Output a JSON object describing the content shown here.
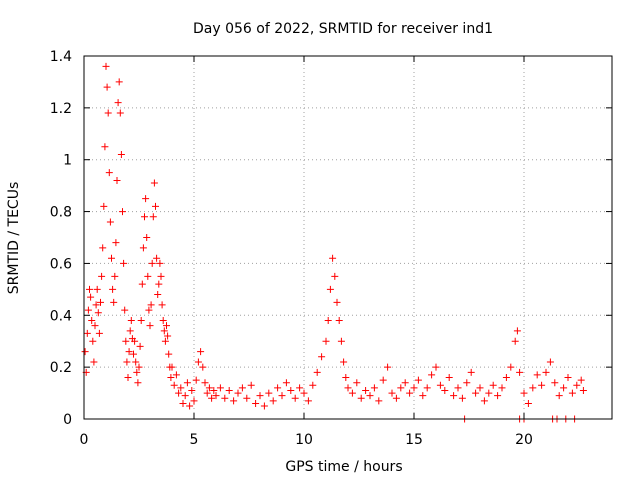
{
  "chart_data": {
    "type": "scatter",
    "title": "Day 056 of 2022, SRMTID for receiver ind1",
    "xlabel": "GPS time / hours",
    "ylabel": "SRMTID / TECUs",
    "xlim": [
      0,
      24
    ],
    "ylim": [
      0,
      1.4
    ],
    "xticks": [
      0,
      5,
      10,
      15,
      20
    ],
    "xtick_labels": [
      "0",
      "5",
      "10",
      "15",
      "20"
    ],
    "yticks": [
      0,
      0.2,
      0.4,
      0.6,
      0.8,
      1.0,
      1.2,
      1.4
    ],
    "ytick_labels": [
      "0",
      "0.2",
      "0.4",
      "0.6",
      "0.8",
      "1",
      "1.2",
      "1.4"
    ],
    "grid": true,
    "marker": "+",
    "color": "#ff0000",
    "series": [
      {
        "name": "ind1",
        "points": [
          [
            0.05,
            0.26
          ],
          [
            0.1,
            0.18
          ],
          [
            0.15,
            0.33
          ],
          [
            0.2,
            0.42
          ],
          [
            0.25,
            0.5
          ],
          [
            0.3,
            0.47
          ],
          [
            0.35,
            0.38
          ],
          [
            0.4,
            0.3
          ],
          [
            0.45,
            0.22
          ],
          [
            0.5,
            0.36
          ],
          [
            0.55,
            0.44
          ],
          [
            0.6,
            0.5
          ],
          [
            0.65,
            0.41
          ],
          [
            0.7,
            0.33
          ],
          [
            0.75,
            0.45
          ],
          [
            0.8,
            0.55
          ],
          [
            0.85,
            0.66
          ],
          [
            0.9,
            0.82
          ],
          [
            0.95,
            1.05
          ],
          [
            1.0,
            1.36
          ],
          [
            1.05,
            1.28
          ],
          [
            1.1,
            1.18
          ],
          [
            1.15,
            0.95
          ],
          [
            1.2,
            0.76
          ],
          [
            1.25,
            0.62
          ],
          [
            1.3,
            0.5
          ],
          [
            1.35,
            0.45
          ],
          [
            1.4,
            0.55
          ],
          [
            1.45,
            0.68
          ],
          [
            1.5,
            0.92
          ],
          [
            1.55,
            1.22
          ],
          [
            1.6,
            1.3
          ],
          [
            1.65,
            1.18
          ],
          [
            1.7,
            1.02
          ],
          [
            1.75,
            0.8
          ],
          [
            1.8,
            0.6
          ],
          [
            1.85,
            0.42
          ],
          [
            1.9,
            0.3
          ],
          [
            1.95,
            0.22
          ],
          [
            2.0,
            0.16
          ],
          [
            2.05,
            0.26
          ],
          [
            2.1,
            0.34
          ],
          [
            2.15,
            0.38
          ],
          [
            2.2,
            0.31
          ],
          [
            2.25,
            0.25
          ],
          [
            2.3,
            0.3
          ],
          [
            2.35,
            0.22
          ],
          [
            2.4,
            0.18
          ],
          [
            2.45,
            0.14
          ],
          [
            2.5,
            0.2
          ],
          [
            2.55,
            0.28
          ],
          [
            2.6,
            0.38
          ],
          [
            2.65,
            0.52
          ],
          [
            2.7,
            0.66
          ],
          [
            2.75,
            0.78
          ],
          [
            2.8,
            0.85
          ],
          [
            2.85,
            0.7
          ],
          [
            2.9,
            0.55
          ],
          [
            2.95,
            0.42
          ],
          [
            3.0,
            0.36
          ],
          [
            3.05,
            0.44
          ],
          [
            3.1,
            0.6
          ],
          [
            3.15,
            0.78
          ],
          [
            3.2,
            0.91
          ],
          [
            3.25,
            0.82
          ],
          [
            3.3,
            0.62
          ],
          [
            3.35,
            0.48
          ],
          [
            3.4,
            0.52
          ],
          [
            3.45,
            0.6
          ],
          [
            3.5,
            0.55
          ],
          [
            3.55,
            0.44
          ],
          [
            3.6,
            0.38
          ],
          [
            3.65,
            0.34
          ],
          [
            3.7,
            0.3
          ],
          [
            3.75,
            0.36
          ],
          [
            3.8,
            0.32
          ],
          [
            3.85,
            0.25
          ],
          [
            3.9,
            0.2
          ],
          [
            3.95,
            0.16
          ],
          [
            4.0,
            0.2
          ],
          [
            4.1,
            0.13
          ],
          [
            4.2,
            0.17
          ],
          [
            4.3,
            0.1
          ],
          [
            4.4,
            0.12
          ],
          [
            4.5,
            0.06
          ],
          [
            4.6,
            0.09
          ],
          [
            4.7,
            0.14
          ],
          [
            4.8,
            0.05
          ],
          [
            4.9,
            0.11
          ],
          [
            5.0,
            0.07
          ],
          [
            5.1,
            0.15
          ],
          [
            5.2,
            0.22
          ],
          [
            5.3,
            0.26
          ],
          [
            5.4,
            0.2
          ],
          [
            5.5,
            0.14
          ],
          [
            5.6,
            0.1
          ],
          [
            5.7,
            0.12
          ],
          [
            5.8,
            0.08
          ],
          [
            5.9,
            0.11
          ],
          [
            6.0,
            0.09
          ],
          [
            6.2,
            0.12
          ],
          [
            6.4,
            0.08
          ],
          [
            6.6,
            0.11
          ],
          [
            6.8,
            0.07
          ],
          [
            7.0,
            0.1
          ],
          [
            7.2,
            0.12
          ],
          [
            7.4,
            0.08
          ],
          [
            7.6,
            0.13
          ],
          [
            7.8,
            0.06
          ],
          [
            8.0,
            0.09
          ],
          [
            8.2,
            0.05
          ],
          [
            8.4,
            0.1
          ],
          [
            8.6,
            0.07
          ],
          [
            8.8,
            0.12
          ],
          [
            9.0,
            0.09
          ],
          [
            9.2,
            0.14
          ],
          [
            9.4,
            0.11
          ],
          [
            9.6,
            0.08
          ],
          [
            9.8,
            0.12
          ],
          [
            10.0,
            0.1
          ],
          [
            10.2,
            0.07
          ],
          [
            10.4,
            0.13
          ],
          [
            10.6,
            0.18
          ],
          [
            10.8,
            0.24
          ],
          [
            11.0,
            0.3
          ],
          [
            11.1,
            0.38
          ],
          [
            11.2,
            0.5
          ],
          [
            11.3,
            0.62
          ],
          [
            11.4,
            0.55
          ],
          [
            11.5,
            0.45
          ],
          [
            11.6,
            0.38
          ],
          [
            11.7,
            0.3
          ],
          [
            11.8,
            0.22
          ],
          [
            11.9,
            0.16
          ],
          [
            12.0,
            0.12
          ],
          [
            12.2,
            0.1
          ],
          [
            12.4,
            0.14
          ],
          [
            12.6,
            0.08
          ],
          [
            12.8,
            0.11
          ],
          [
            13.0,
            0.09
          ],
          [
            13.2,
            0.12
          ],
          [
            13.4,
            0.07
          ],
          [
            13.6,
            0.15
          ],
          [
            13.8,
            0.2
          ],
          [
            14.0,
            0.1
          ],
          [
            14.2,
            0.08
          ],
          [
            14.4,
            0.12
          ],
          [
            14.6,
            0.14
          ],
          [
            14.8,
            0.1
          ],
          [
            15.0,
            0.12
          ],
          [
            15.2,
            0.15
          ],
          [
            15.4,
            0.09
          ],
          [
            15.6,
            0.12
          ],
          [
            15.8,
            0.17
          ],
          [
            16.0,
            0.2
          ],
          [
            16.2,
            0.13
          ],
          [
            16.4,
            0.11
          ],
          [
            16.6,
            0.16
          ],
          [
            16.8,
            0.09
          ],
          [
            17.0,
            0.12
          ],
          [
            17.2,
            0.08
          ],
          [
            17.4,
            0.14
          ],
          [
            17.6,
            0.18
          ],
          [
            17.8,
            0.1
          ],
          [
            18.0,
            0.12
          ],
          [
            18.2,
            0.07
          ],
          [
            18.4,
            0.1
          ],
          [
            18.6,
            0.13
          ],
          [
            18.8,
            0.09
          ],
          [
            19.0,
            0.12
          ],
          [
            19.2,
            0.16
          ],
          [
            19.4,
            0.2
          ],
          [
            19.6,
            0.3
          ],
          [
            19.7,
            0.34
          ],
          [
            19.8,
            0.18
          ],
          [
            20.0,
            0.1
          ],
          [
            20.2,
            0.06
          ],
          [
            20.4,
            0.12
          ],
          [
            20.6,
            0.17
          ],
          [
            20.8,
            0.13
          ],
          [
            21.0,
            0.18
          ],
          [
            21.2,
            0.22
          ],
          [
            21.4,
            0.14
          ],
          [
            21.6,
            0.09
          ],
          [
            21.8,
            0.12
          ],
          [
            22.0,
            0.16
          ],
          [
            22.2,
            0.1
          ],
          [
            22.4,
            0.13
          ],
          [
            22.6,
            0.15
          ],
          [
            22.7,
            0.11
          ],
          [
            17.3,
            0.0
          ],
          [
            19.8,
            0.0
          ],
          [
            20.0,
            0.0
          ],
          [
            21.3,
            0.0
          ],
          [
            21.5,
            0.0
          ],
          [
            21.9,
            0.0
          ],
          [
            22.3,
            0.0
          ]
        ]
      }
    ]
  }
}
